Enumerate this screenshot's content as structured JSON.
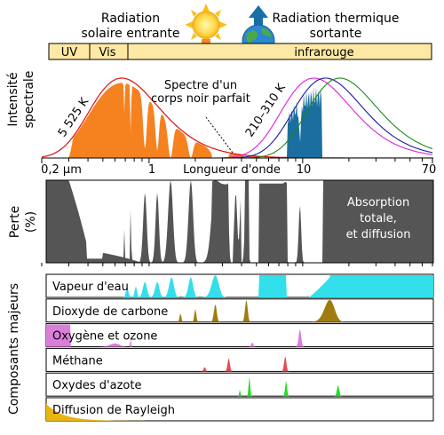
{
  "header": {
    "solar_line1": "Radiation",
    "solar_line2": "solaire entrante",
    "thermal_line1": "Radiation thermique",
    "thermal_line2": "sortante"
  },
  "bands": {
    "uv": "UV",
    "vis": "Vis",
    "ir": "infrarouge"
  },
  "spectrum": {
    "ylabel_line1": "Intensité",
    "ylabel_line2": "spectrale",
    "sun_temp": "5 525 K",
    "earth_temp": "210–310 K",
    "blackbody_line1": "Spectre d'un",
    "blackbody_line2": "corps noir parfait"
  },
  "axis": {
    "ticks": [
      "0,2 µm",
      "1",
      "10",
      "70"
    ],
    "label": "Longueur d'onde"
  },
  "loss": {
    "ylabel_line1": "Perte",
    "ylabel_line2": "(%)",
    "note_line1": "Absorption",
    "note_line2": "totale,",
    "note_line3": "et diffusion"
  },
  "components": {
    "ylabel": "Composants majeurs",
    "items": [
      {
        "name": "Vapeur d'eau",
        "color": "#33dfeb"
      },
      {
        "name": "Dioxyde de carbone",
        "color": "#a07c10"
      },
      {
        "name": "Oxygène et ozone",
        "color": "#d97fd9"
      },
      {
        "name": "Méthane",
        "color": "#e24c57"
      },
      {
        "name": "Oxydes d'azote",
        "color": "#22dd22"
      },
      {
        "name": "Diffusion de Rayleigh",
        "color": "#e8b511"
      }
    ]
  },
  "colors": {
    "solar_fill": "#f5821f",
    "thermal_fill": "#1b6fa0",
    "loss_fill": "#555555",
    "band_bar": "#fde9a4",
    "sun_curve": "#dd1111"
  }
}
